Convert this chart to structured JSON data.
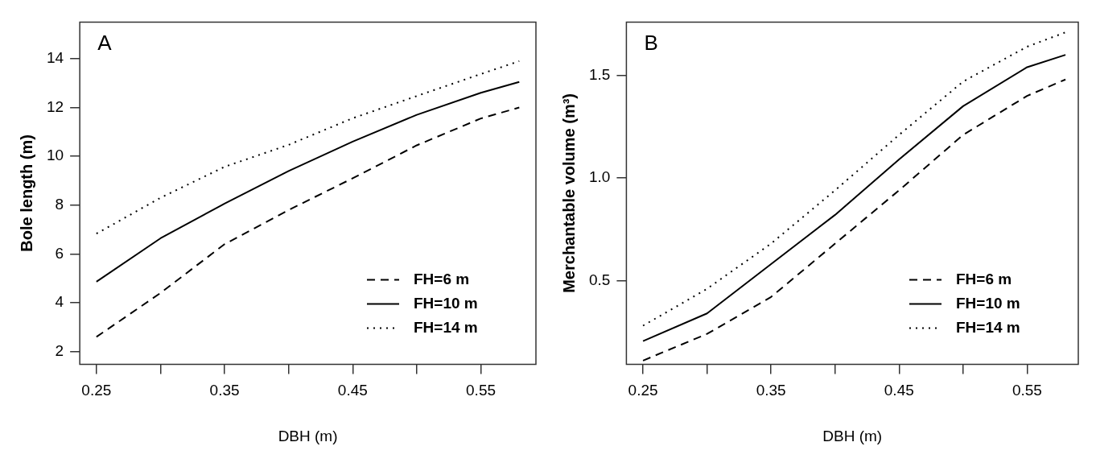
{
  "chart_data": [
    {
      "type": "line",
      "annotations": [
        "A"
      ],
      "xlabel": "DBH (m)",
      "ylabel": "Bole length (m)",
      "x": [
        0.25,
        0.3,
        0.35,
        0.4,
        0.45,
        0.5,
        0.55,
        0.58
      ],
      "series": [
        {
          "name": "FH=6 m",
          "color": "#000000",
          "line_style": "dashed",
          "values": [
            2.6,
            4.4,
            6.4,
            7.8,
            9.1,
            10.45,
            11.55,
            12.0
          ]
        },
        {
          "name": "FH=10 m",
          "color": "#000000",
          "line_style": "solid",
          "values": [
            4.86,
            6.64,
            8.06,
            9.4,
            10.6,
            11.7,
            12.6,
            13.05
          ]
        },
        {
          "name": "FH=14 m",
          "color": "#000000",
          "line_style": "dotted",
          "values": [
            6.83,
            8.3,
            9.57,
            10.47,
            11.56,
            12.47,
            13.37,
            13.9
          ]
        }
      ],
      "xlim": [
        0.237,
        0.593
      ],
      "xticks": [
        0.25,
        {
          "value": 0.3,
          "label": null
        },
        0.35,
        {
          "value": 0.4,
          "label": null
        },
        0.45,
        {
          "value": 0.5,
          "label": null
        },
        0.55
      ],
      "ylim": [
        1.48,
        15.5
      ],
      "yticks": [
        2,
        4,
        6,
        8,
        10,
        12,
        14
      ],
      "grid": false,
      "legend": "bottom right",
      "marker": "none"
    },
    {
      "type": "line",
      "annotations": [
        "B"
      ],
      "xlabel": "DBH (m)",
      "ylabel": "Merchantable volume (m³)",
      "x": [
        0.25,
        0.3,
        0.35,
        0.4,
        0.45,
        0.5,
        0.55,
        0.58
      ],
      "series": [
        {
          "name": "FH=6 m",
          "color": "#000000",
          "line_style": "dashed",
          "values": [
            0.11,
            0.24,
            0.42,
            0.68,
            0.94,
            1.21,
            1.4,
            1.48
          ]
        },
        {
          "name": "FH=10 m",
          "color": "#000000",
          "line_style": "solid",
          "values": [
            0.205,
            0.34,
            0.58,
            0.82,
            1.09,
            1.35,
            1.54,
            1.6
          ]
        },
        {
          "name": "FH=14 m",
          "color": "#000000",
          "line_style": "dotted",
          "values": [
            0.28,
            0.46,
            0.68,
            0.94,
            1.21,
            1.47,
            1.64,
            1.71
          ]
        }
      ],
      "xlim": [
        0.237,
        0.59
      ],
      "xticks": [
        0.25,
        {
          "value": 0.3,
          "label": null
        },
        0.35,
        {
          "value": 0.4,
          "label": null
        },
        0.45,
        {
          "value": 0.5,
          "label": null
        },
        0.55
      ],
      "ylim": [
        0.092,
        1.76
      ],
      "yticks": [
        0.5,
        {
          "value": 1,
          "label": "1.0"
        },
        1.5
      ],
      "grid": false,
      "legend": "bottom right",
      "marker": "none"
    }
  ]
}
